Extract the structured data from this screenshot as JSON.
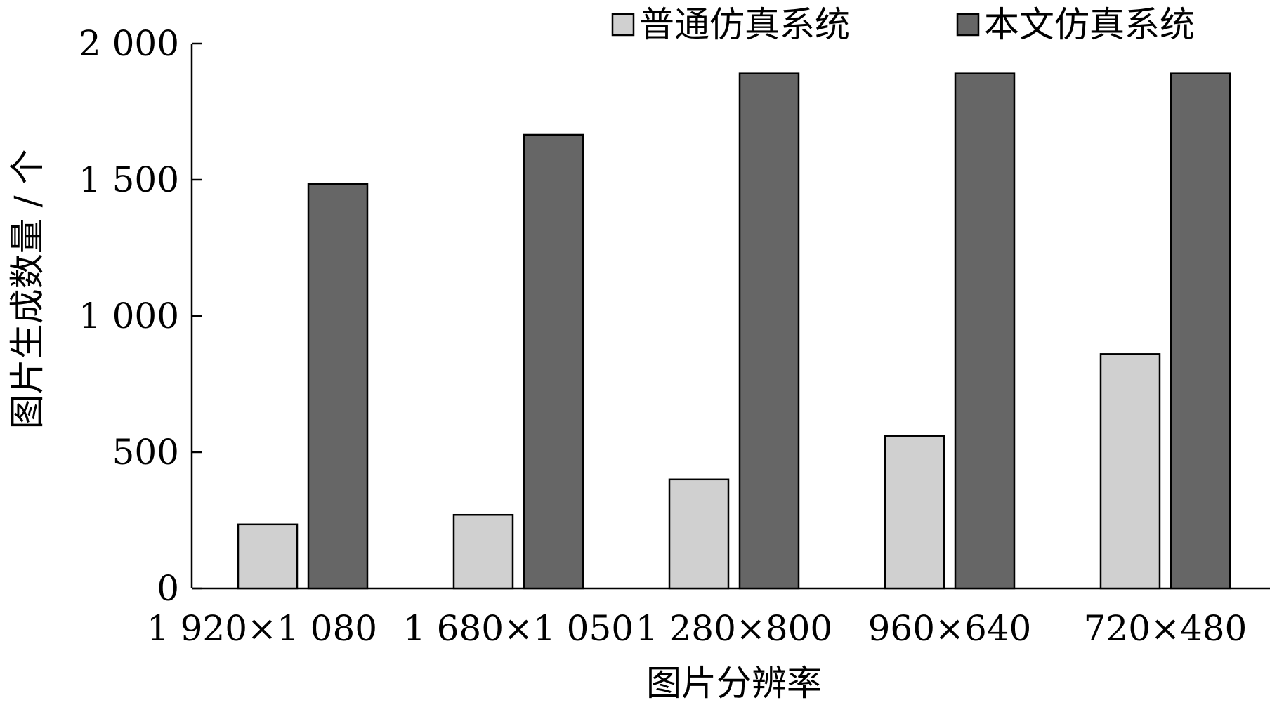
{
  "chart_data": {
    "type": "bar",
    "title": "",
    "xlabel": "图片分辨率",
    "ylabel": "图片生成数量 / 个",
    "categories": [
      "1 920×1 080",
      "1 680×1 050",
      "1 280×800",
      "960×640",
      "720×480"
    ],
    "series": [
      {
        "name": "普通仿真系统",
        "values": [
          235,
          270,
          400,
          560,
          860
        ],
        "color": "#d0d0d0"
      },
      {
        "name": "本文仿真系统",
        "values": [
          1485,
          1665,
          1890,
          1890,
          1890
        ],
        "color": "#666666"
      }
    ],
    "ylim": [
      0,
      2000
    ],
    "yticks": [
      0,
      500,
      1000,
      1500,
      2000
    ],
    "ytick_labels": [
      "0",
      "500",
      "1 000",
      "1 500",
      "2 000"
    ],
    "grid": false,
    "legend": {
      "position": "top-right"
    }
  }
}
